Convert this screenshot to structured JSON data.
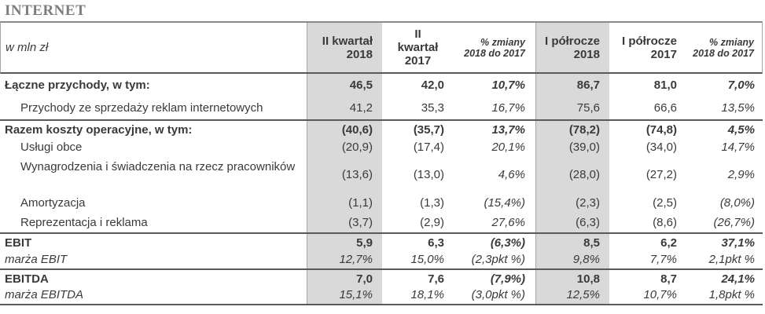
{
  "title": "INTERNET",
  "colors": {
    "shaded_column": "#d9d9d9",
    "section_border": "#595959",
    "grid_line": "#a6a6a6",
    "title_color": "#7d7d7d",
    "text_color": "#3a3a3a"
  },
  "table": {
    "unit_label": "w mln zł",
    "headers": {
      "q2_2018": "II kwartał\n2018",
      "q2_2017": "II\nkwartał\n2017",
      "change_q": "% zmiany\n2018 do 2017",
      "h1_2018": "I półrocze\n2018",
      "h1_2017": "I półrocze\n2017",
      "change_h": "% zmiany\n2018 do 2017"
    },
    "rows": [
      {
        "label": "Łączne przychody, w tym:",
        "values": [
          "46,5",
          "42,0",
          "10,7%",
          "86,7",
          "81,0",
          "7,0%"
        ]
      },
      {
        "label": "Przychody ze sprzedaży reklam internetowych",
        "values": [
          "41,2",
          "35,3",
          "16,7%",
          "75,6",
          "66,6",
          "13,5%"
        ]
      },
      {
        "label": "Razem koszty operacyjne, w tym:",
        "values": [
          "(40,6)",
          "(35,7)",
          "13,7%",
          "(78,2)",
          "(74,8)",
          "4,5%"
        ]
      },
      {
        "label": "Usługi obce",
        "values": [
          "(20,9)",
          "(17,4)",
          "20,1%",
          "(39,0)",
          "(34,0)",
          "14,7%"
        ]
      },
      {
        "label": "Wynagrodzenia i świadczenia na rzecz pracowników",
        "values": [
          "(13,6)",
          "(13,0)",
          "4,6%",
          "(28,0)",
          "(27,2)",
          "2,9%"
        ]
      },
      {
        "label": "Amortyzacja",
        "values": [
          "(1,1)",
          "(1,3)",
          "(15,4%)",
          "(2,3)",
          "(2,5)",
          "(8,0%)"
        ]
      },
      {
        "label": "Reprezentacja i reklama",
        "values": [
          "(3,7)",
          "(2,9)",
          "27,6%",
          "(6,3)",
          "(8,6)",
          "(26,7%)"
        ]
      },
      {
        "label": "EBIT",
        "values": [
          "5,9",
          "6,3",
          "(6,3%)",
          "8,5",
          "6,2",
          "37,1%"
        ]
      },
      {
        "label": "marża EBIT",
        "values": [
          "12,7%",
          "15,0%",
          "(2,3pkt %)",
          "9,8%",
          "7,7%",
          "2,1pkt %"
        ]
      },
      {
        "label": "EBITDA",
        "values": [
          "7,0",
          "7,6",
          "(7,9%)",
          "10,8",
          "8,7",
          "24,1%"
        ]
      },
      {
        "label": "marża EBITDA",
        "values": [
          "15,1%",
          "18,1%",
          "(3,0pkt %)",
          "12,5%",
          "10,7%",
          "1,8pkt %"
        ]
      }
    ]
  }
}
